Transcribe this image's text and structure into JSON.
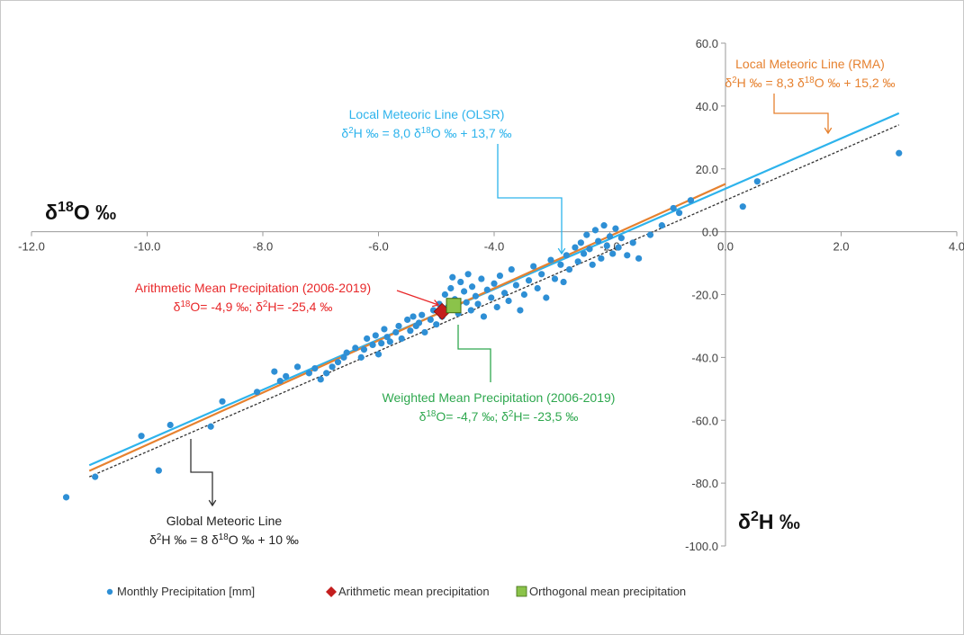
{
  "chart_data": {
    "type": "scatter",
    "x_axis": {
      "label": "δ18O ‰",
      "range": [
        -12,
        4
      ],
      "ticks": [
        -12,
        -10,
        -8,
        -6,
        -4,
        -2,
        0,
        2,
        4
      ],
      "tick_labels": [
        "-12.0",
        "-10.0",
        "-8.0",
        "-6.0",
        "-4.0",
        "-2.0",
        "0.0",
        "2.0",
        "4.0"
      ]
    },
    "y_axis": {
      "label": "δ2H ‰",
      "range": [
        -100,
        60
      ],
      "ticks": [
        -100,
        -80,
        -60,
        -40,
        -20,
        0,
        20,
        40,
        60
      ],
      "tick_labels": [
        "-100.0",
        "-80.0",
        "-60.0",
        "-40.0",
        "-20.0",
        "0.0",
        "20.0",
        "40.0",
        "60.0"
      ]
    },
    "grid": false,
    "legend_position": "bottom",
    "series": [
      {
        "name": "Monthly Precipitation [mm]",
        "kind": "points",
        "color": "#2e8fd5",
        "points": [
          [
            -11.4,
            -84.5
          ],
          [
            -10.9,
            -78
          ],
          [
            -10.1,
            -65
          ],
          [
            -9.8,
            -76
          ],
          [
            -9.6,
            -61.5
          ],
          [
            -8.9,
            -62
          ],
          [
            -8.7,
            -54
          ],
          [
            -8.1,
            -51
          ],
          [
            -7.8,
            -44.5
          ],
          [
            -7.7,
            -47.5
          ],
          [
            -7.6,
            -46
          ],
          [
            -7.4,
            -43
          ],
          [
            -7.2,
            -45
          ],
          [
            -7.1,
            -43.5
          ],
          [
            -7.0,
            -47
          ],
          [
            -6.9,
            -45
          ],
          [
            -6.8,
            -43
          ],
          [
            -6.7,
            -41.5
          ],
          [
            -6.6,
            -40
          ],
          [
            -6.55,
            -38.5
          ],
          [
            -6.4,
            -37
          ],
          [
            -6.3,
            -40
          ],
          [
            -6.25,
            -37.5
          ],
          [
            -6.2,
            -34
          ],
          [
            -6.1,
            -36
          ],
          [
            -6.05,
            -33
          ],
          [
            -6.0,
            -39
          ],
          [
            -5.95,
            -35.5
          ],
          [
            -5.9,
            -31
          ],
          [
            -5.85,
            -33.5
          ],
          [
            -5.8,
            -35
          ],
          [
            -5.7,
            -32
          ],
          [
            -5.65,
            -30
          ],
          [
            -5.6,
            -34
          ],
          [
            -5.5,
            -28
          ],
          [
            -5.45,
            -31.5
          ],
          [
            -5.4,
            -27
          ],
          [
            -5.35,
            -30
          ],
          [
            -5.3,
            -29
          ],
          [
            -5.25,
            -26.5
          ],
          [
            -5.2,
            -32
          ],
          [
            -5.1,
            -28
          ],
          [
            -5.05,
            -25
          ],
          [
            -5.0,
            -29.5
          ],
          [
            -4.95,
            -23
          ],
          [
            -4.9,
            -27
          ],
          [
            -4.85,
            -20
          ],
          [
            -4.8,
            -24
          ],
          [
            -4.75,
            -18
          ],
          [
            -4.72,
            -14.5
          ],
          [
            -4.68,
            -21.5
          ],
          [
            -4.62,
            -26
          ],
          [
            -4.58,
            -16
          ],
          [
            -4.52,
            -19
          ],
          [
            -4.48,
            -22.5
          ],
          [
            -4.45,
            -13.5
          ],
          [
            -4.4,
            -25
          ],
          [
            -4.38,
            -17.5
          ],
          [
            -4.32,
            -20.5
          ],
          [
            -4.28,
            -23
          ],
          [
            -4.22,
            -15
          ],
          [
            -4.18,
            -27
          ],
          [
            -4.12,
            -18.5
          ],
          [
            -4.05,
            -21
          ],
          [
            -4.0,
            -16.5
          ],
          [
            -3.95,
            -24
          ],
          [
            -3.9,
            -14
          ],
          [
            -3.82,
            -19.5
          ],
          [
            -3.75,
            -22
          ],
          [
            -3.7,
            -12
          ],
          [
            -3.62,
            -17
          ],
          [
            -3.55,
            -25
          ],
          [
            -3.48,
            -20
          ],
          [
            -3.4,
            -15.5
          ],
          [
            -3.32,
            -11
          ],
          [
            -3.25,
            -18
          ],
          [
            -3.18,
            -13.5
          ],
          [
            -3.1,
            -21
          ],
          [
            -3.02,
            -9
          ],
          [
            -2.95,
            -15
          ],
          [
            -2.85,
            -10.5
          ],
          [
            -2.8,
            -16
          ],
          [
            -2.75,
            -7.5
          ],
          [
            -2.7,
            -12
          ],
          [
            -2.6,
            -5
          ],
          [
            -2.55,
            -9.5
          ],
          [
            -2.5,
            -3.5
          ],
          [
            -2.45,
            -7
          ],
          [
            -2.4,
            -1
          ],
          [
            -2.35,
            -5.5
          ],
          [
            -2.3,
            -10.5
          ],
          [
            -2.25,
            0.5
          ],
          [
            -2.2,
            -3
          ],
          [
            -2.15,
            -8.5
          ],
          [
            -2.1,
            2
          ],
          [
            -2.05,
            -4.5
          ],
          [
            -2.0,
            -1.5
          ],
          [
            -1.95,
            -7
          ],
          [
            -1.9,
            1
          ],
          [
            -1.85,
            -5
          ],
          [
            -1.8,
            -2
          ],
          [
            -1.7,
            -7.5
          ],
          [
            -1.6,
            -3.5
          ],
          [
            -1.5,
            -8.5
          ],
          [
            -1.3,
            -1
          ],
          [
            -1.1,
            2
          ],
          [
            -0.9,
            7.5
          ],
          [
            -0.8,
            6
          ],
          [
            -0.6,
            10
          ],
          [
            0.3,
            8
          ],
          [
            0.55,
            16
          ],
          [
            3.0,
            25
          ]
        ]
      },
      {
        "name": "Arithmetic mean precipitation",
        "kind": "marker",
        "marker": "diamond",
        "color": "#c41e1e",
        "points": [
          [
            -4.9,
            -25.4
          ]
        ]
      },
      {
        "name": "Orthogonal mean precipitation",
        "kind": "marker",
        "marker": "square",
        "color": "#8bc34a",
        "points": [
          [
            -4.7,
            -23.5
          ]
        ]
      },
      {
        "kind": "line",
        "color": "#2db3ec",
        "equation": {
          "slope": 8.0,
          "intercept": 13.7
        },
        "x_range": [
          -11.0,
          3.0
        ]
      },
      {
        "kind": "line",
        "color": "#e6812f",
        "equation": {
          "slope": 8.3,
          "intercept": 15.2
        },
        "x_range": [
          -11.0,
          0.0
        ]
      },
      {
        "kind": "line",
        "color": "#333333",
        "dashed": true,
        "equation": {
          "slope": 8.0,
          "intercept": 10.0
        },
        "x_range": [
          -11.0,
          3.0
        ]
      }
    ],
    "annotations": [
      {
        "key": "olsr",
        "lines": [
          "Local Meteoric Line (OLSR)",
          "δ2H ‰ = 8,0 δ18O ‰  + 13,7 ‰"
        ],
        "color": "#2db3ec"
      },
      {
        "key": "rma",
        "lines": [
          "Local Meteoric Line (RMA)",
          "δ2H ‰ = 8,3 δ18O ‰  + 15,2 ‰"
        ],
        "color": "#e6812f"
      },
      {
        "key": "arith",
        "lines": [
          "Arithmetic Mean Precipitation (2006-2019)",
          "δ18O= -4,9 ‰;  δ2H= -25,4 ‰"
        ],
        "color": "#e8282a"
      },
      {
        "key": "weighted",
        "lines": [
          "Weighted Mean Precipitation (2006-2019)",
          "δ18O= -4,7 ‰;  δ2H= -23,5 ‰"
        ],
        "color": "#2fa84f"
      },
      {
        "key": "gmwl",
        "lines": [
          "Global Meteoric Line",
          "δ2H ‰ = 8 δ18O ‰  + 10 ‰"
        ],
        "color": "#222222"
      }
    ],
    "legend": [
      {
        "label": "Monthly Precipitation [mm]",
        "marker": "dot",
        "color": "#2e8fd5"
      },
      {
        "label": "Arithmetic mean precipitation",
        "marker": "diamond",
        "color": "#c41e1e"
      },
      {
        "label": "Orthogonal mean precipitation",
        "marker": "square",
        "color": "#8bc34a"
      }
    ]
  }
}
